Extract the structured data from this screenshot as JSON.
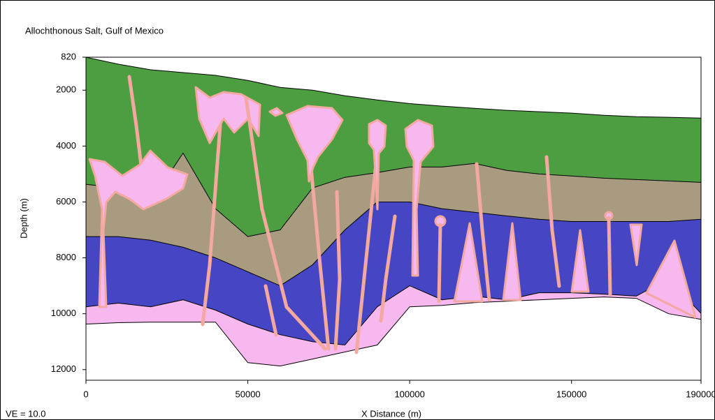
{
  "chart_data": {
    "type": "area",
    "title": "Allochthonous Salt, Gulf of Mexico",
    "xlabel": "X Distance (m)",
    "ylabel": "Depth (m)",
    "annotation": "VE = 10.0",
    "x": [
      0,
      10000,
      20000,
      30000,
      40000,
      50000,
      60000,
      70000,
      80000,
      90000,
      100000,
      110000,
      120000,
      130000,
      140000,
      150000,
      160000,
      170000,
      180000,
      190000
    ],
    "series": [
      {
        "color": "#4c9e40",
        "values": [
          820,
          1070,
          1270,
          1370,
          1470,
          1650,
          1900,
          2000,
          2200,
          2350,
          2480,
          2570,
          2650,
          2720,
          2770,
          2820,
          2900,
          2950,
          2970,
          3000
        ]
      },
      {
        "color": "#a89b80",
        "values": [
          5370,
          5500,
          6000,
          4250,
          6240,
          7240,
          7000,
          5500,
          5120,
          4950,
          4750,
          4750,
          4620,
          4870,
          5000,
          5070,
          5150,
          5200,
          5250,
          5300
        ]
      },
      {
        "color": "#4646c4",
        "values": [
          7240,
          7240,
          7370,
          7620,
          8000,
          8500,
          9000,
          8250,
          7000,
          6000,
          6000,
          6240,
          6370,
          6500,
          6620,
          6700,
          6700,
          6700,
          6700,
          6620
        ]
      },
      {
        "color": "#f6b8ee",
        "values": [
          9750,
          9620,
          9750,
          9500,
          9870,
          10370,
          10750,
          11000,
          11120,
          9750,
          9000,
          9500,
          9370,
          9500,
          9250,
          9250,
          9300,
          9370,
          8750,
          9990
        ]
      },
      {
        "color": "#ffffff",
        "values": [
          10370,
          10320,
          10300,
          10300,
          10300,
          11750,
          11870,
          11620,
          11370,
          11120,
          9750,
          9700,
          9600,
          9550,
          9500,
          9450,
          9400,
          9450,
          10000,
          10200
        ]
      }
    ],
    "xlim": [
      0,
      190000
    ],
    "ylim": [
      820,
      12380
    ],
    "y_inverted": true,
    "xticks": [
      0,
      50000,
      100000,
      150000,
      190000
    ],
    "yticks": [
      820,
      2000,
      4000,
      6000,
      8000,
      10000,
      12000
    ]
  }
}
